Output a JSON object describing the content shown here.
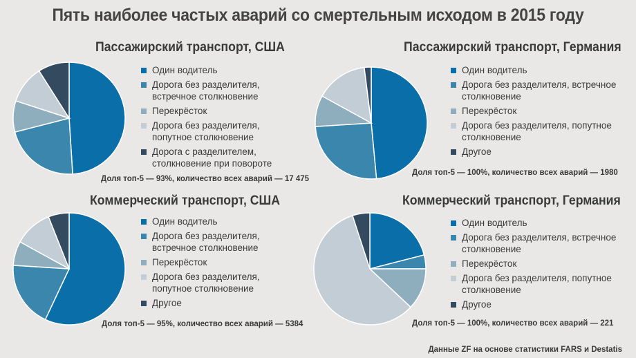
{
  "title": "Пять наиболее частых аварий со смертельным  исходом в 2015 году",
  "source": "Данные ZF на основе статистики FARS и Destatis",
  "colors": [
    "#0a6fa8",
    "#3b86ad",
    "#8eaebe",
    "#c3cdd5",
    "#344a5e"
  ],
  "chart_data": [
    {
      "type": "pie",
      "title": "Пассажирский транспорт, США",
      "labels": [
        "Один водитель",
        "Дорога без разделителя, встречное столкновение",
        "Перекрёсток",
        "Дорога без разделителя, попутное столкновение",
        "Дорога с разделителем, столкновение при повороте"
      ],
      "values": [
        49,
        22,
        9,
        11,
        9
      ],
      "note": "Доля топ-5 — 93%, количество всех аварий — 17 475"
    },
    {
      "type": "pie",
      "title": "Пассажирский транспорт, Германия",
      "labels": [
        "Один водитель",
        "Дорога без разделителя, встречное столкновение",
        "Перекрёсток",
        "Дорога без разделителя, попутное столкновение",
        "Другое"
      ],
      "values": [
        48.5,
        25.5,
        9,
        15,
        2
      ],
      "note": "Доля топ-5 — 100%, количество всех аварий — 1980"
    },
    {
      "type": "pie",
      "title": "Коммерческий транспорт, США",
      "labels": [
        "Один водитель",
        "Дорога без разделителя, встречное столкновение",
        "Перекрёсток",
        "Дорога без разделителя, попутное столкновение",
        "Другое"
      ],
      "values": [
        57,
        19,
        7,
        11,
        6
      ],
      "note": "Доля топ-5 — 95%, количество всех аварий — 5384"
    },
    {
      "type": "pie",
      "title": "Коммерческий транспорт, Германия",
      "labels": [
        "Один водитель",
        "Дорога без разделителя, встречное столкновение",
        "Перекрёсток",
        "Дорога без разделителя, попутное столкновение",
        "Другое"
      ],
      "values": [
        21,
        4,
        12,
        58,
        5
      ],
      "note": "Доля топ-5 — 100%, количество всех аварий — 221"
    }
  ]
}
